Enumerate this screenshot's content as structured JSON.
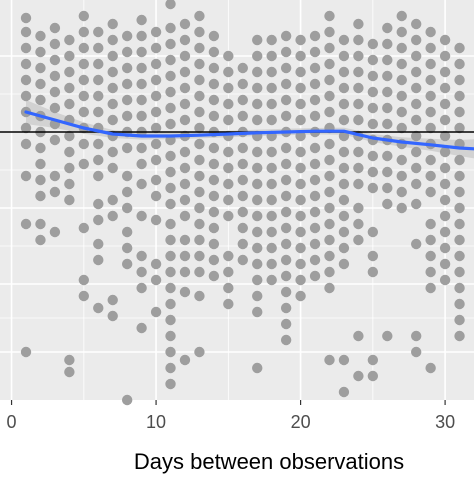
{
  "chart_data": {
    "type": "scatter",
    "title": "",
    "xlabel": "Days between observations",
    "ylabel": "",
    "xlim": [
      -0.8,
      32
    ],
    "ylim": [
      0,
      10
    ],
    "x_ticks": [
      0,
      10,
      20,
      30
    ],
    "x_tick_labels": [
      "0",
      "10",
      "20",
      "30"
    ],
    "y_ticks": [
      1.2,
      2.9,
      4.8,
      6.7,
      8.6
    ],
    "grid": true,
    "reference_line_y": 6.7,
    "colors": {
      "panel_background": "#ebebeb",
      "grid": "#ffffff",
      "points": "#9e9e9e",
      "smooth_line": "#3366ff",
      "confidence_band": "#c9c9c9",
      "reference_line": "#000000"
    },
    "point_x": [
      1,
      2,
      3,
      4,
      5,
      6,
      7,
      8,
      9,
      10,
      11,
      12,
      13,
      14,
      15,
      16,
      17,
      18,
      19,
      20,
      21,
      22,
      23,
      24,
      25,
      26,
      27,
      28,
      29,
      30,
      31
    ],
    "point_groups": {
      "1": [
        9.55,
        9.2,
        8.8,
        8.4,
        8.0,
        7.6,
        7.2,
        6.8,
        6.4,
        5.6,
        4.4,
        1.2
      ],
      "2": [
        9.1,
        8.7,
        8.3,
        7.9,
        7.5,
        7.1,
        6.7,
        6.3,
        5.9,
        5.5,
        5.1,
        4.4,
        4.0
      ],
      "3": [
        9.3,
        8.9,
        8.5,
        8.1,
        7.7,
        7.3,
        6.9,
        6.5,
        5.6,
        5.2,
        4.2
      ],
      "4": [
        9.0,
        8.6,
        8.2,
        7.8,
        7.4,
        7.0,
        6.6,
        6.2,
        5.8,
        5.4,
        5.0,
        1.0,
        0.7
      ],
      "5": [
        9.6,
        9.2,
        8.8,
        8.4,
        8.0,
        7.6,
        7.2,
        6.8,
        6.4,
        5.9,
        4.3,
        3.0,
        2.6
      ],
      "6": [
        9.2,
        8.8,
        8.4,
        8.0,
        7.6,
        7.2,
        6.8,
        6.4,
        6.0,
        5.6,
        4.9,
        4.5,
        3.9,
        3.5,
        2.3,
        -0.5
      ],
      "7": [
        9.4,
        9.0,
        8.6,
        8.2,
        7.8,
        7.4,
        7.0,
        6.6,
        6.2,
        5.8,
        5.0,
        4.6,
        2.5,
        2.1
      ],
      "8": [
        9.1,
        8.7,
        8.3,
        7.9,
        7.5,
        7.1,
        6.7,
        6.3,
        5.6,
        5.2,
        4.8,
        4.2,
        3.8,
        3.4,
        0.0
      ],
      "9": [
        9.5,
        9.1,
        8.7,
        8.3,
        7.9,
        7.5,
        7.1,
        6.7,
        6.3,
        5.9,
        5.4,
        4.6,
        3.6,
        3.2,
        2.8,
        1.8
      ],
      "10": [
        9.2,
        8.8,
        8.4,
        8.0,
        7.6,
        7.2,
        6.8,
        6.4,
        6.0,
        5.5,
        5.1,
        4.5,
        3.4,
        3.0,
        2.2
      ],
      "11": [
        10.3,
        9.9,
        9.3,
        8.9,
        8.5,
        8.1,
        7.7,
        7.3,
        6.9,
        6.5,
        6.1,
        5.7,
        5.3,
        4.9,
        4.4,
        4.0,
        3.6,
        3.2,
        2.8,
        2.4,
        2.0,
        1.6,
        1.2,
        0.8,
        0.4
      ],
      "12": [
        9.4,
        9.0,
        8.6,
        8.2,
        7.8,
        7.4,
        7.0,
        6.6,
        6.2,
        5.8,
        5.4,
        5.0,
        4.6,
        4.0,
        3.6,
        3.2,
        2.7,
        1.0
      ],
      "13": [
        9.6,
        9.2,
        8.8,
        8.4,
        8.0,
        7.6,
        7.2,
        6.8,
        6.4,
        6.0,
        5.6,
        5.2,
        4.8,
        4.4,
        4.0,
        3.6,
        3.2,
        2.6,
        1.2
      ],
      "14": [
        9.1,
        8.7,
        8.3,
        7.9,
        7.5,
        7.1,
        6.7,
        6.3,
        5.9,
        5.5,
        5.1,
        4.7,
        4.3,
        3.9,
        3.5,
        3.1
      ],
      "15": [
        8.6,
        8.2,
        7.8,
        7.4,
        7.0,
        6.6,
        6.2,
        5.8,
        5.4,
        5.0,
        4.6,
        3.6,
        3.2,
        2.8,
        2.4,
        -0.9
      ],
      "16": [
        8.3,
        7.9,
        7.5,
        7.1,
        6.7,
        6.3,
        5.9,
        5.5,
        5.1,
        4.7,
        4.3,
        3.9,
        3.5
      ],
      "17": [
        9.0,
        8.6,
        8.2,
        7.8,
        7.4,
        7.0,
        6.6,
        6.2,
        5.8,
        5.4,
        5.0,
        4.6,
        4.2,
        3.8,
        3.4,
        3.0,
        2.6,
        2.2,
        0.8
      ],
      "18": [
        9.0,
        8.6,
        8.2,
        7.8,
        7.4,
        7.0,
        6.6,
        6.2,
        5.8,
        5.4,
        5.0,
        4.6,
        4.2,
        3.8,
        3.4,
        3.0
      ],
      "19": [
        9.1,
        8.7,
        8.3,
        7.9,
        7.5,
        7.1,
        6.7,
        6.3,
        5.9,
        5.5,
        5.1,
        4.7,
        4.3,
        3.9,
        3.5,
        3.1,
        2.7,
        2.3,
        1.9,
        1.5
      ],
      "20": [
        9.0,
        8.6,
        8.2,
        7.8,
        7.4,
        7.0,
        6.6,
        6.2,
        5.8,
        5.4,
        5.0,
        4.6,
        4.2,
        3.8,
        3.4,
        3.0,
        2.6
      ],
      "21": [
        9.1,
        8.7,
        8.3,
        7.9,
        7.5,
        7.1,
        6.7,
        6.3,
        5.9,
        5.5,
        5.1,
        4.7,
        4.3,
        3.9,
        3.5,
        3.1
      ],
      "22": [
        9.6,
        9.2,
        8.8,
        8.4,
        8.0,
        7.6,
        7.2,
        6.8,
        6.4,
        6.0,
        5.6,
        5.2,
        4.8,
        4.4,
        4.0,
        3.6,
        3.2,
        2.8,
        1.0
      ],
      "23": [
        9.0,
        8.6,
        8.2,
        7.8,
        7.4,
        7.0,
        6.6,
        6.2,
        5.8,
        5.4,
        5.0,
        4.6,
        4.2,
        3.8,
        3.4,
        1.0,
        0.2
      ],
      "24": [
        9.4,
        9.0,
        8.6,
        8.2,
        7.8,
        7.4,
        7.0,
        6.6,
        6.2,
        5.8,
        5.4,
        4.8,
        4.4,
        4.0,
        1.6,
        0.6,
        -0.5
      ],
      "25": [
        8.9,
        8.5,
        8.1,
        7.7,
        7.3,
        6.9,
        6.5,
        6.1,
        5.7,
        5.3,
        4.2,
        3.6,
        3.2,
        1.0,
        0.6
      ],
      "26": [
        9.3,
        8.9,
        8.5,
        8.1,
        7.7,
        7.3,
        6.9,
        6.5,
        6.1,
        5.7,
        5.3,
        4.9,
        1.6
      ],
      "27": [
        9.6,
        9.2,
        8.8,
        8.4,
        8.0,
        7.6,
        7.2,
        6.8,
        6.4,
        6.0,
        5.6,
        5.2,
        4.8
      ],
      "28": [
        9.4,
        9.0,
        8.6,
        8.2,
        7.8,
        7.4,
        7.0,
        6.6,
        6.2,
        5.8,
        5.4,
        4.9,
        3.9,
        1.6,
        1.2
      ],
      "29": [
        9.2,
        8.8,
        8.4,
        8.0,
        7.6,
        7.2,
        6.8,
        6.4,
        6.0,
        5.6,
        5.2,
        4.4,
        4.0,
        3.6,
        3.2,
        2.8,
        0.8
      ],
      "30": [
        9.0,
        8.6,
        8.2,
        7.8,
        7.4,
        7.0,
        6.6,
        6.2,
        5.8,
        5.4,
        5.0,
        4.6,
        4.2,
        3.8,
        3.4,
        3.0,
        -0.9
      ],
      "31": [
        8.8,
        8.4,
        8.0,
        7.6,
        7.2,
        6.8,
        6.4,
        6.0,
        5.6,
        5.2,
        4.8,
        4.4,
        4.0,
        3.6,
        3.2,
        2.8,
        2.4,
        2.0,
        1.6
      ]
    },
    "smooth_x": [
      1,
      3,
      5,
      7,
      9,
      11,
      13,
      15,
      17,
      19,
      21,
      23,
      25,
      27,
      29,
      31,
      32
    ],
    "smooth_y": [
      7.2,
      7.0,
      6.8,
      6.65,
      6.6,
      6.6,
      6.62,
      6.65,
      6.68,
      6.7,
      6.72,
      6.72,
      6.55,
      6.45,
      6.38,
      6.3,
      6.28
    ],
    "band_halfwidth": [
      0.3,
      0.2,
      0.14,
      0.1,
      0.09,
      0.08,
      0.08,
      0.08,
      0.08,
      0.08,
      0.08,
      0.09,
      0.1,
      0.12,
      0.15,
      0.2,
      0.24
    ]
  }
}
